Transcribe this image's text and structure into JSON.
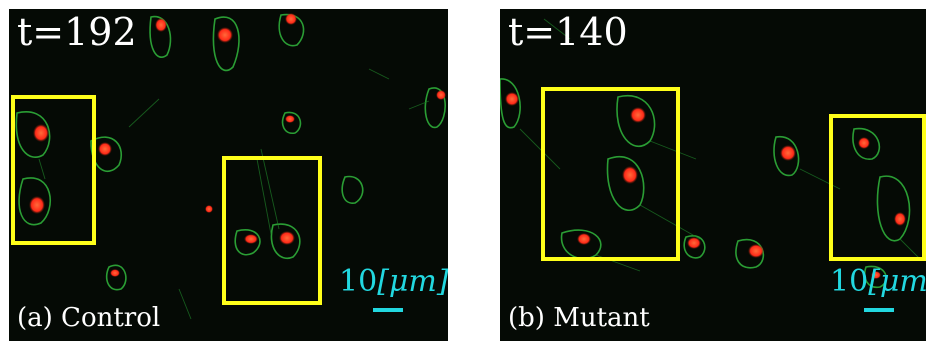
{
  "panels": [
    {
      "timestamp": "t=192",
      "caption": "(a) Control",
      "scale_text": "10",
      "scale_unit": "[μm]"
    },
    {
      "timestamp": "t=140",
      "caption": "(b) Mutant",
      "scale_text": "10",
      "scale_unit": "[μm]"
    }
  ],
  "colors": {
    "background": "#050a05",
    "cell_membrane": "#2fae3a",
    "nucleus": "#ff3a1e",
    "roi_box": "#ffff1a",
    "scale": "#22d8e0"
  }
}
